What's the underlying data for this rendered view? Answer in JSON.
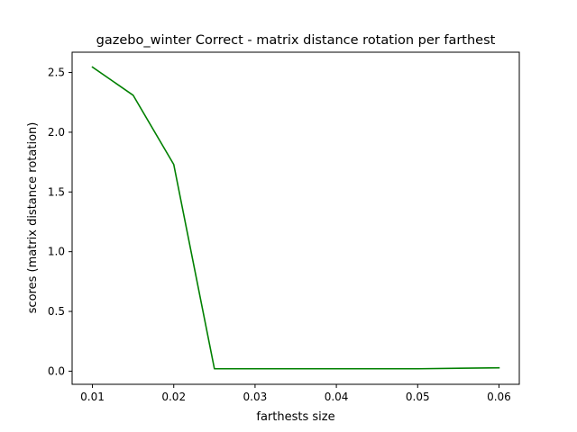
{
  "chart_data": {
    "type": "line",
    "title": "gazebo_winter Correct - matrix distance rotation per farthest",
    "xlabel": "farthests size",
    "ylabel": "scores (matrix distance rotation)",
    "xlim": [
      0.0075,
      0.0625
    ],
    "ylim": [
      -0.11,
      2.67
    ],
    "x_ticks": [
      0.01,
      0.02,
      0.03,
      0.04,
      0.05,
      0.06
    ],
    "x_tick_labels": [
      "0.01",
      "0.02",
      "0.03",
      "0.04",
      "0.05",
      "0.06"
    ],
    "y_ticks": [
      0.0,
      0.5,
      1.0,
      1.5,
      2.0,
      2.5
    ],
    "y_tick_labels": [
      "0.0",
      "0.5",
      "1.0",
      "1.5",
      "2.0",
      "2.5"
    ],
    "grid": false,
    "series": [
      {
        "color": "#008000",
        "x": [
          0.01,
          0.015,
          0.02,
          0.025,
          0.03,
          0.04,
          0.05,
          0.06
        ],
        "y": [
          2.545,
          2.31,
          1.73,
          0.02,
          0.02,
          0.02,
          0.02,
          0.028
        ]
      }
    ]
  }
}
